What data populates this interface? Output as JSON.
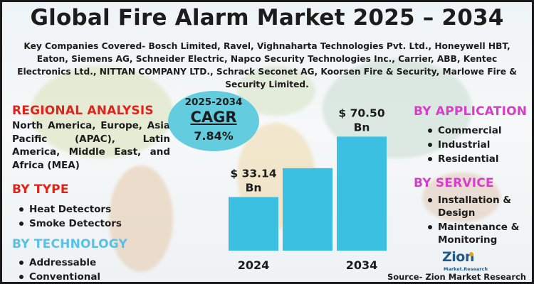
{
  "title": "Global Fire Alarm Market 2025 – 2034",
  "companies": "Key Companies Covered- Bosch Limited, Ravel, Vighnaharta Technologies Pvt. Ltd., Honeywell HBT, Eaton, Siemens AG, Schneider Electric, Napco Security Technologies Inc., Carrier, ABB, Kentec Electronics Ltd., NITTAN COMPANY LTD., Schrack Seconet AG, Koorsen Fire & Security, Marlowe Fire & Security Limited.",
  "regional": {
    "heading": "REGIONAL ANALYSIS",
    "text": "North America, Europe, Asia Pacific (APAC), Latin America, Middle East, and Africa (MEA)"
  },
  "by_type": {
    "heading": "BY TYPE",
    "items": [
      "Heat Detectors",
      "Smoke Detectors"
    ]
  },
  "by_technology": {
    "heading": "BY TECHNOLOGY",
    "items": [
      "Addressable",
      "Conventional"
    ]
  },
  "by_application": {
    "heading": "BY APPLICATION",
    "items": [
      "Commercial",
      "Industrial",
      "Residential"
    ]
  },
  "by_service": {
    "heading": "BY SERVICE",
    "items": [
      "Installation & Design",
      "Maintenance & Monitoring"
    ]
  },
  "cagr": {
    "years": "2025-2034",
    "label": "CAGR",
    "value": "7.84%"
  },
  "colors": {
    "bar": "#3bc0e2",
    "cagr_circle": "#64ccdf",
    "red": "#e0241b",
    "blue": "#5bc0e6",
    "magenta": "#d63ec9"
  },
  "chart_data": {
    "type": "bar",
    "categories": [
      "2024",
      "",
      "2034"
    ],
    "values": [
      33.14,
      51.0,
      70.5
    ],
    "data_labels": [
      "$ 33.14 Bn",
      "",
      "$ 70.50 Bn"
    ],
    "title": "",
    "xlabel": "",
    "ylabel": "",
    "ylim": [
      0,
      90
    ],
    "grid": false,
    "legend": "none"
  },
  "logo": {
    "name": "Zion",
    "sub": "Market.Research"
  },
  "source": "Source- Zion Market Research"
}
